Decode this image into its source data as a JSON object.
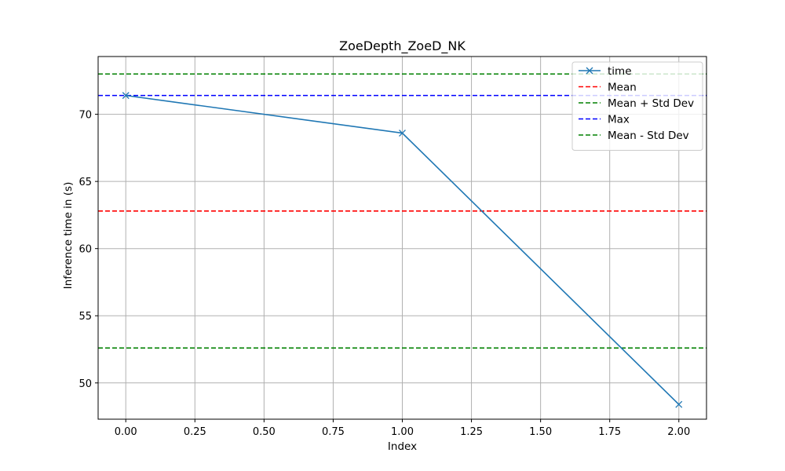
{
  "chart_data": {
    "type": "line",
    "title": "ZoeDepth_ZoeD_NK",
    "xlabel": "Index",
    "ylabel": "Inference time in (s)",
    "xlim": [
      -0.1,
      2.1
    ],
    "ylim": [
      47.3,
      74.3
    ],
    "xticks": [
      0.0,
      0.25,
      0.5,
      0.75,
      1.0,
      1.25,
      1.5,
      1.75,
      2.0
    ],
    "xtick_labels": [
      "0.00",
      "0.25",
      "0.50",
      "0.75",
      "1.00",
      "1.25",
      "1.50",
      "1.75",
      "2.00"
    ],
    "yticks": [
      50,
      55,
      60,
      65,
      70
    ],
    "ytick_labels": [
      "50",
      "55",
      "60",
      "65",
      "70"
    ],
    "grid": true,
    "legend_position": "top-right",
    "series": [
      {
        "name": "time",
        "x": [
          0,
          1,
          2
        ],
        "values": [
          71.4,
          68.6,
          48.4
        ],
        "color": "#1f77b4",
        "marker": "x",
        "style": "solid"
      }
    ],
    "hlines": [
      {
        "name": "Mean",
        "value": 62.8,
        "color": "#ff0000",
        "style": "dashed"
      },
      {
        "name": "Mean + Std Dev",
        "value": 73.0,
        "color": "#008000",
        "style": "dashed"
      },
      {
        "name": "Max",
        "value": 71.4,
        "color": "#0000ff",
        "style": "dashed"
      },
      {
        "name": "Mean - Std Dev",
        "value": 52.6,
        "color": "#008000",
        "style": "dashed"
      }
    ]
  }
}
